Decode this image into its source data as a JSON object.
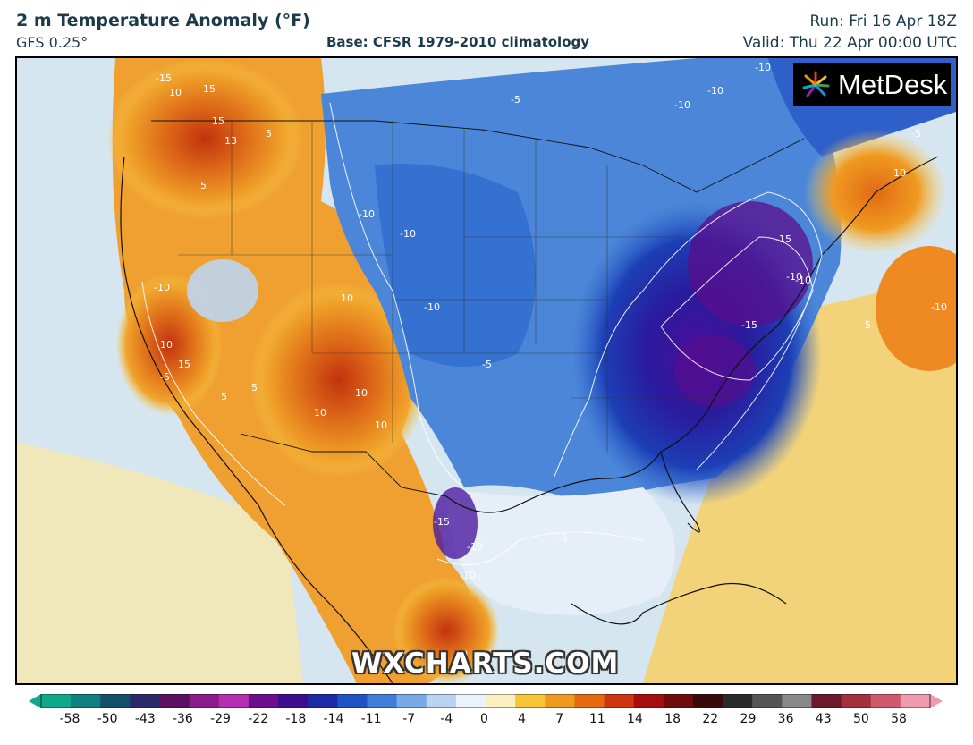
{
  "header": {
    "title": "2 m Temperature Anomaly (°F)",
    "model": "GFS 0.25°",
    "base": "Base: CFSR 1979-2010 climatology",
    "run": "Run: Fri 16 Apr 18Z",
    "valid": "Valid: Thu 22 Apr 00:00 UTC"
  },
  "branding": {
    "logo_text": "MetDesk",
    "watermark": "WXCHARTS.COM"
  },
  "map": {
    "contour_labels": [
      "-15",
      "10",
      "15",
      "15",
      "13",
      "5",
      "5",
      "-10",
      "-10",
      "-10",
      "-10",
      "-5",
      "-10",
      "-10",
      "-5",
      "-10",
      "10",
      "-15",
      "-10",
      "-15",
      "-5",
      "5",
      "10",
      "-10",
      "15",
      "10",
      "10",
      "10",
      "5",
      "10",
      "5",
      "-15",
      "-10",
      "-10",
      "-5",
      "10",
      "-10",
      "-5"
    ]
  },
  "colorbar": {
    "ticks": [
      "-58",
      "-50",
      "-43",
      "-36",
      "-29",
      "-22",
      "-18",
      "-14",
      "-11",
      "-7",
      "-4",
      "0",
      "4",
      "7",
      "11",
      "14",
      "18",
      "22",
      "29",
      "36",
      "43",
      "50",
      "58"
    ],
    "colors": [
      "#0fa88a",
      "#0f7f7f",
      "#15506a",
      "#2a2a6a",
      "#5a0f5f",
      "#8b1a8b",
      "#b52db0",
      "#6a0e8e",
      "#3b0e8e",
      "#1c2aa5",
      "#1f52c5",
      "#3e7ed8",
      "#79a9e6",
      "#b9d3f1",
      "#eaf2fb",
      "#fbf0c0",
      "#f5c638",
      "#ee9a20",
      "#e46a10",
      "#cf3510",
      "#a60e0e",
      "#6e0b0b",
      "#3a0a0a",
      "#2a2a2a",
      "#555555",
      "#888888",
      "#6a1a2a",
      "#a3303d",
      "#cf5a6e",
      "#f09ab0"
    ]
  }
}
